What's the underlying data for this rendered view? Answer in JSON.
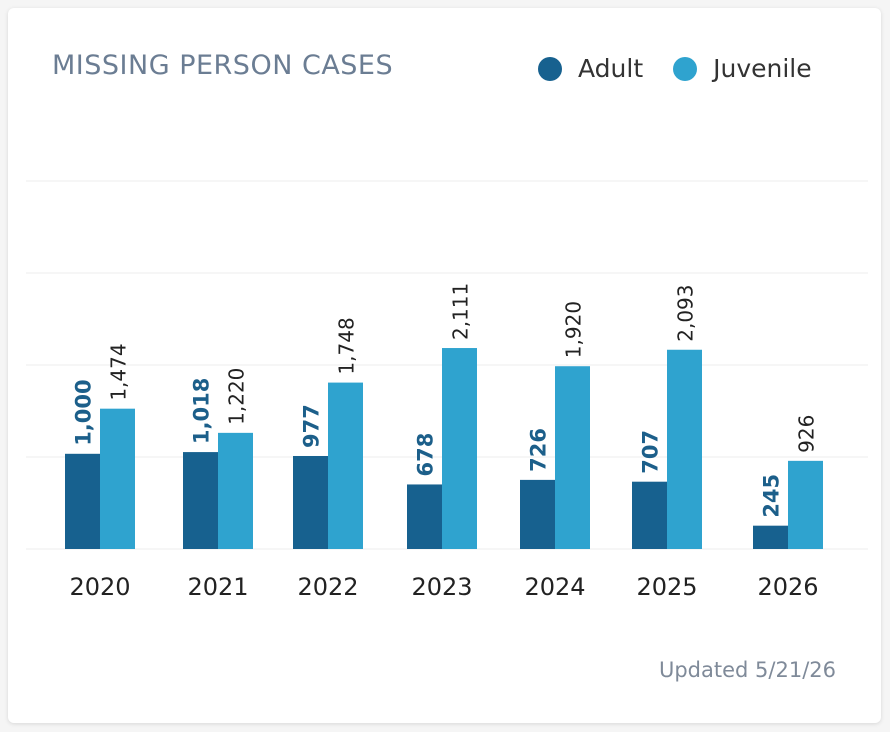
{
  "colors": {
    "adult": "#17618f",
    "juvenile": "#2fa3cf",
    "adult_label": "#1c5f8a",
    "juvenile_label": "#222222",
    "grid": "#eeeeee"
  },
  "chart_data": {
    "type": "bar",
    "title": "MISSING PERSON CASES",
    "categories": [
      "2020",
      "2021",
      "2022",
      "2023",
      "2024",
      "2025",
      "2026"
    ],
    "series": [
      {
        "name": "Adult",
        "values": [
          1000,
          1018,
          977,
          678,
          726,
          707,
          245
        ],
        "labels": [
          "1,000",
          "1,018",
          "977",
          "678",
          "726",
          "707",
          "245"
        ]
      },
      {
        "name": "Juvenile",
        "values": [
          1474,
          1220,
          1748,
          2111,
          1920,
          2093,
          926
        ],
        "labels": [
          "1,474",
          "1,220",
          "1,748",
          "2,111",
          "1,920",
          "2,093",
          "926"
        ]
      }
    ],
    "legend": "top-right",
    "grid": true,
    "xlabel": "",
    "ylabel": ""
  },
  "footer": {
    "updated": "Updated 5/21/26"
  }
}
